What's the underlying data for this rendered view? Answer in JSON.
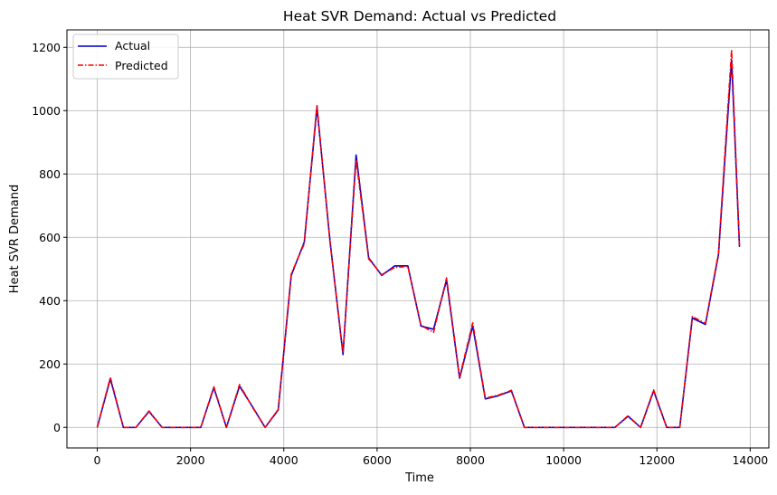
{
  "chart_data": {
    "type": "line",
    "title": "Heat SVR Demand: Actual vs Predicted",
    "xlabel": "Time",
    "ylabel": "Heat SVR Demand",
    "xlim": [
      -650,
      14400
    ],
    "ylim": [
      -65,
      1255
    ],
    "xticks": [
      0,
      2000,
      4000,
      6000,
      8000,
      10000,
      12000,
      14000
    ],
    "yticks": [
      0,
      200,
      400,
      600,
      800,
      1000,
      1200
    ],
    "grid": true,
    "legend_position": "top-left",
    "x": [
      0,
      280,
      560,
      830,
      1110,
      1390,
      1670,
      1940,
      2220,
      2500,
      2770,
      3050,
      3330,
      3600,
      3880,
      4160,
      4440,
      4710,
      4990,
      5270,
      5550,
      5820,
      6100,
      6380,
      6660,
      6940,
      7210,
      7490,
      7770,
      8050,
      8320,
      8600,
      8880,
      9160,
      9430,
      9710,
      9990,
      10270,
      10540,
      10820,
      11100,
      11380,
      11650,
      11930,
      12210,
      12490,
      12760,
      13040,
      13320,
      13600,
      13770
    ],
    "series": [
      {
        "name": "Actual",
        "color": "#0000cc",
        "style": "solid",
        "values": [
          0,
          153,
          0,
          0,
          50,
          0,
          0,
          0,
          0,
          125,
          0,
          130,
          65,
          0,
          55,
          480,
          585,
          1010,
          590,
          230,
          860,
          535,
          480,
          510,
          510,
          320,
          310,
          465,
          155,
          320,
          90,
          100,
          115,
          0,
          0,
          0,
          0,
          0,
          0,
          0,
          0,
          35,
          0,
          115,
          0,
          0,
          345,
          325,
          545,
          1160,
          570
        ]
      },
      {
        "name": "Predicted",
        "color": "#ff0000",
        "style": "dashdot",
        "values": [
          0,
          158,
          0,
          0,
          52,
          0,
          0,
          0,
          0,
          128,
          0,
          135,
          63,
          0,
          57,
          485,
          580,
          1018,
          585,
          235,
          845,
          532,
          482,
          505,
          508,
          322,
          300,
          472,
          158,
          330,
          92,
          102,
          117,
          0,
          0,
          0,
          0,
          0,
          0,
          0,
          0,
          37,
          0,
          118,
          0,
          0,
          350,
          328,
          550,
          1192,
          575
        ]
      }
    ]
  }
}
